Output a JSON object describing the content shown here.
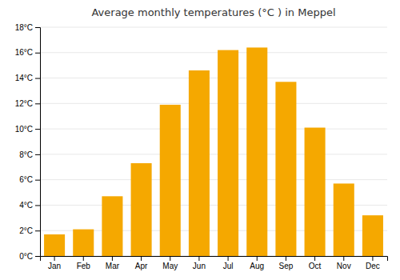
{
  "chart_data": {
    "type": "bar",
    "title": "Average monthly temperatures (°C ) in Meppel",
    "categories": [
      "Jan",
      "Feb",
      "Mar",
      "Apr",
      "May",
      "Jun",
      "Jul",
      "Aug",
      "Sep",
      "Oct",
      "Nov",
      "Dec"
    ],
    "values": [
      1.7,
      2.1,
      4.7,
      7.3,
      11.9,
      14.6,
      16.2,
      16.4,
      13.7,
      10.1,
      5.7,
      3.2
    ],
    "color": "#F5A800",
    "ylim": [
      0,
      18
    ],
    "yticks": [
      {
        "value": 0,
        "label": "0°C"
      },
      {
        "value": 2,
        "label": "2°C"
      },
      {
        "value": 4,
        "label": "4°C"
      },
      {
        "value": 6,
        "label": "6°C"
      },
      {
        "value": 8,
        "label": "8°C"
      },
      {
        "value": 10,
        "label": "10°C"
      },
      {
        "value": 12,
        "label": "12°C"
      },
      {
        "value": 14,
        "label": "14°C"
      },
      {
        "value": 16,
        "label": "16°C"
      },
      {
        "value": 18,
        "label": "18°C"
      }
    ],
    "grid": true
  }
}
